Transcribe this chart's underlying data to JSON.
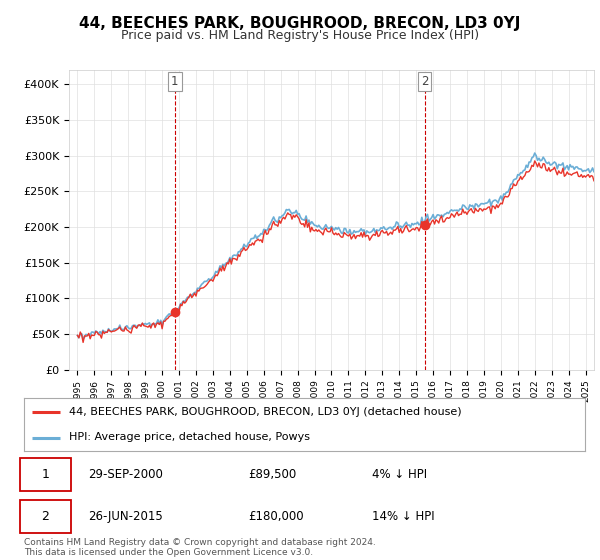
{
  "title": "44, BEECHES PARK, BOUGHROOD, BRECON, LD3 0YJ",
  "subtitle": "Price paid vs. HM Land Registry's House Price Index (HPI)",
  "ylim": [
    0,
    420000
  ],
  "yticks": [
    0,
    50000,
    100000,
    150000,
    200000,
    250000,
    300000,
    350000,
    400000
  ],
  "ytick_labels": [
    "£0",
    "£50K",
    "£100K",
    "£150K",
    "£200K",
    "£250K",
    "£300K",
    "£350K",
    "£400K"
  ],
  "hpi_color": "#6baed6",
  "price_color": "#e8342a",
  "dashed_line_color": "#cc0000",
  "background_color": "#ffffff",
  "grid_color": "#e0e0e0",
  "t1": 2000.75,
  "t2": 2015.5,
  "transaction1_date": "29-SEP-2000",
  "transaction1_price": "£89,500",
  "transaction1_label": "4% ↓ HPI",
  "transaction2_date": "26-JUN-2015",
  "transaction2_price": "£180,000",
  "transaction2_label": "14% ↓ HPI",
  "legend_line1": "44, BEECHES PARK, BOUGHROOD, BRECON, LD3 0YJ (detached house)",
  "legend_line2": "HPI: Average price, detached house, Powys",
  "footnote": "Contains HM Land Registry data © Crown copyright and database right 2024.\nThis data is licensed under the Open Government Licence v3.0."
}
